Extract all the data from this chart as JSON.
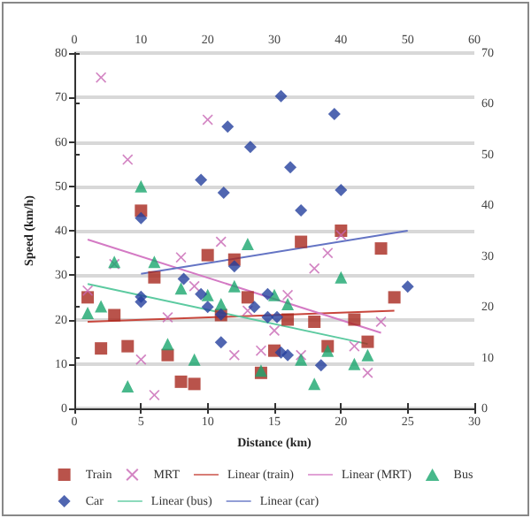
{
  "chart_data": {
    "type": "scatter",
    "xlabel": "Distance (km)",
    "ylabel": "Speed (km/h)",
    "xlim": [
      0,
      30
    ],
    "xticks": [
      0,
      5,
      10,
      15,
      20,
      25,
      30
    ],
    "x2lim": [
      0,
      60
    ],
    "x2ticks": [
      0,
      10,
      20,
      30,
      40,
      50,
      60
    ],
    "ylim": [
      0,
      80
    ],
    "yticks": [
      0,
      10,
      20,
      30,
      40,
      50,
      60,
      70,
      80
    ],
    "y2lim": [
      0,
      70
    ],
    "y2ticks": [
      0,
      10,
      20,
      30,
      40,
      50,
      60,
      70
    ],
    "grid": "y",
    "legend": "bottom",
    "series": [
      {
        "name": "Train",
        "color": "#a8281e",
        "marker": "square",
        "x": [
          1,
          2,
          3,
          4,
          5,
          6,
          7,
          8,
          9,
          10,
          11,
          12,
          13,
          14,
          15,
          16,
          17,
          18,
          19,
          20,
          21,
          22,
          23,
          24
        ],
        "values": [
          25,
          13.5,
          21,
          14,
          44.5,
          29.5,
          12,
          6,
          5.5,
          34.5,
          21,
          33.5,
          25,
          8,
          13,
          20,
          37.5,
          19.5,
          14,
          40,
          20,
          15,
          36,
          25
        ]
      },
      {
        "name": "MRT",
        "color": "#c866b4",
        "marker": "cross",
        "x": [
          1,
          2,
          3,
          4,
          5,
          6,
          7,
          8,
          9,
          10,
          11,
          12,
          13,
          14,
          15,
          16,
          17,
          18,
          19,
          20,
          21,
          22,
          23
        ],
        "values": [
          26.5,
          74.5,
          32.5,
          56,
          11,
          3,
          20.5,
          34,
          27.5,
          65,
          37.5,
          12,
          22,
          13,
          17.5,
          25.5,
          12,
          31.5,
          35,
          39,
          14,
          8,
          19.5
        ]
      },
      {
        "name": "Linear (train)",
        "type": "line",
        "marker": "none",
        "color": "#c8463c",
        "x": [
          1,
          24
        ],
        "values": [
          19.5,
          22
        ]
      },
      {
        "name": "Linear (MRT)",
        "type": "line",
        "marker": "none",
        "color": "#d47ac4",
        "x": [
          1,
          23
        ],
        "values": [
          38,
          17
        ]
      },
      {
        "name": "Bus",
        "color": "#1aa66e",
        "marker": "triangle",
        "x": [
          1,
          2,
          3,
          4,
          5,
          6,
          7,
          8,
          9,
          10,
          11,
          12,
          13,
          14,
          15,
          16,
          17,
          18,
          19,
          20,
          21,
          22
        ],
        "values": [
          21.5,
          23,
          33,
          5,
          50,
          33,
          14.5,
          27,
          11,
          25.5,
          23.5,
          27.5,
          37,
          8.5,
          25.5,
          23.5,
          11,
          5.5,
          13,
          29.5,
          10,
          12
        ]
      },
      {
        "name": "Car",
        "color": "#24409e",
        "marker": "diamond",
        "axis": "y2",
        "x": [
          5,
          5,
          5,
          8.2,
          9.5,
          9.5,
          10,
          11,
          11,
          11.2,
          11.5,
          12,
          13.2,
          13.5,
          14.5,
          14.5,
          15.2,
          15.5,
          15.5,
          16,
          16.2,
          17,
          18.5,
          19.5,
          20,
          25
        ],
        "values": [
          37.5,
          22,
          21,
          25.5,
          45,
          22.5,
          20,
          18.5,
          13,
          42.5,
          55.5,
          28,
          51.5,
          20,
          22.5,
          18,
          18,
          11,
          61.5,
          10.5,
          47.5,
          39,
          8.5,
          58,
          43,
          24
        ]
      },
      {
        "name": "Linear (bus)",
        "type": "line",
        "marker": "none",
        "color": "#5ccaa0",
        "x": [
          1,
          22
        ],
        "values": [
          28,
          14.5
        ]
      },
      {
        "name": "Linear (car)",
        "type": "line",
        "marker": "none",
        "color": "#6474c4",
        "axis": "y2",
        "x": [
          5,
          25
        ],
        "values": [
          26.5,
          35
        ]
      }
    ]
  }
}
